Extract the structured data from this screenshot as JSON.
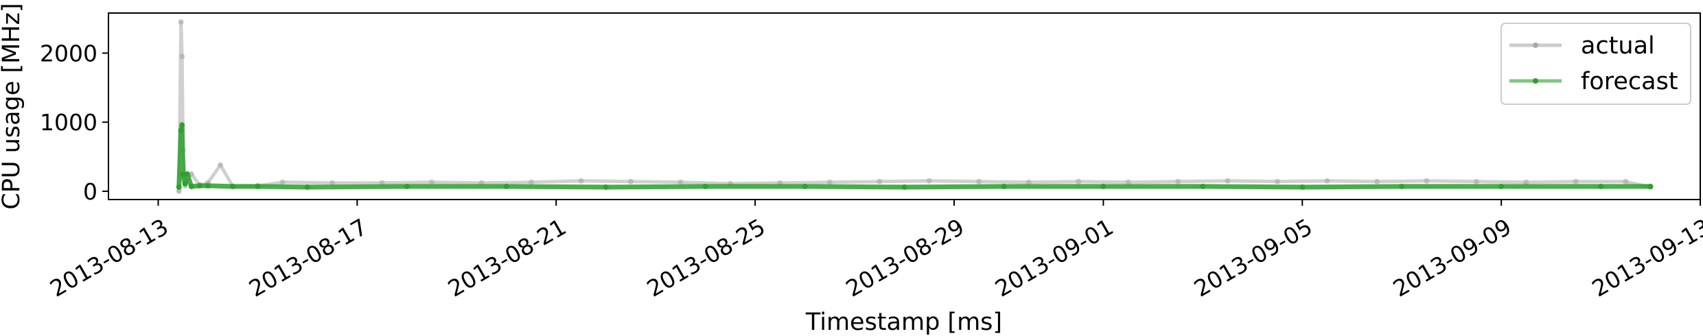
{
  "chart_data": {
    "type": "line",
    "xlabel": "Timestamp [ms]",
    "ylabel": "CPU usage [MHz]",
    "x_ticks": [
      "2013-08-13",
      "2013-08-17",
      "2013-08-21",
      "2013-08-25",
      "2013-08-29",
      "2013-09-01",
      "2013-09-05",
      "2013-09-09",
      "2013-09-13"
    ],
    "y_ticks": [
      0,
      1000,
      2000
    ],
    "xlim": [
      "2013-08-12",
      "2013-09-13"
    ],
    "ylim": [
      -120,
      2580
    ],
    "grid": false,
    "legend_position": "top-right",
    "series": [
      {
        "name": "actual",
        "color": "#a9a9a9",
        "x": [
          "2013-08-13 10:00",
          "2013-08-13 11:00",
          "2013-08-13 11:30",
          "2013-08-13 12:00",
          "2013-08-13 13:00",
          "2013-08-13 14:00",
          "2013-08-13 16:00",
          "2013-08-13 20:00",
          "2013-08-14 00:00",
          "2013-08-14 06:00",
          "2013-08-14 12:00",
          "2013-08-15 00:00",
          "2013-08-15 12:00",
          "2013-08-16 12:00",
          "2013-08-17 12:00",
          "2013-08-18 12:00",
          "2013-08-19 12:00",
          "2013-08-20 12:00",
          "2013-08-21 12:00",
          "2013-08-22 12:00",
          "2013-08-23 12:00",
          "2013-08-24 12:00",
          "2013-08-25 12:00",
          "2013-08-26 12:00",
          "2013-08-27 12:00",
          "2013-08-28 12:00",
          "2013-08-29 12:00",
          "2013-08-30 12:00",
          "2013-08-31 12:00",
          "2013-09-01 12:00",
          "2013-09-02 12:00",
          "2013-09-03 12:00",
          "2013-09-04 12:00",
          "2013-09-05 12:00",
          "2013-09-06 12:00",
          "2013-09-07 12:00",
          "2013-09-08 12:00",
          "2013-09-09 12:00",
          "2013-09-10 12:00",
          "2013-09-11 12:00",
          "2013-09-12 00:00"
        ],
        "values": [
          0,
          2450,
          1950,
          600,
          80,
          150,
          250,
          90,
          120,
          380,
          70,
          80,
          130,
          120,
          120,
          130,
          120,
          130,
          150,
          140,
          130,
          110,
          120,
          130,
          140,
          150,
          140,
          130,
          140,
          130,
          140,
          150,
          140,
          150,
          140,
          150,
          140,
          130,
          140,
          140,
          60
        ]
      },
      {
        "name": "forecast",
        "color": "#2ca02c",
        "x": [
          "2013-08-13 10:00",
          "2013-08-13 11:00",
          "2013-08-13 11:30",
          "2013-08-13 12:00",
          "2013-08-13 13:00",
          "2013-08-13 14:00",
          "2013-08-13 16:00",
          "2013-08-13 20:00",
          "2013-08-14 00:00",
          "2013-08-14 12:00",
          "2013-08-15 00:00",
          "2013-08-16 00:00",
          "2013-08-18 00:00",
          "2013-08-20 00:00",
          "2013-08-22 00:00",
          "2013-08-24 00:00",
          "2013-08-26 00:00",
          "2013-08-28 00:00",
          "2013-08-30 00:00",
          "2013-09-01 00:00",
          "2013-09-03 00:00",
          "2013-09-05 00:00",
          "2013-09-07 00:00",
          "2013-09-09 00:00",
          "2013-09-11 00:00",
          "2013-09-12 00:00"
        ],
        "values": [
          60,
          880,
          960,
          240,
          110,
          250,
          70,
          80,
          80,
          70,
          70,
          60,
          70,
          70,
          60,
          70,
          70,
          60,
          70,
          70,
          70,
          60,
          70,
          70,
          70,
          70
        ]
      }
    ]
  }
}
